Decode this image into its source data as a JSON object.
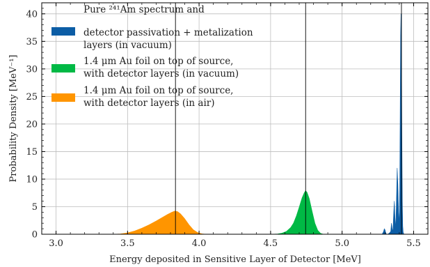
{
  "chart_data": {
    "type": "area",
    "xlabel": "Energy deposited in Sensitive Layer of Detector [MeV]",
    "ylabel": "Probability Density [MeV⁻¹]",
    "xlim": [
      2.9,
      5.6
    ],
    "ylim": [
      0,
      42
    ],
    "xticks": [
      3.0,
      3.5,
      4.0,
      4.5,
      5.0,
      5.5
    ],
    "xtick_labels": [
      "3.0",
      "3.5",
      "4.0",
      "4.5",
      "5.0",
      "5.5"
    ],
    "yticks": [
      0,
      5,
      10,
      15,
      20,
      25,
      30,
      35,
      40
    ],
    "ytick_labels": [
      "0",
      "5",
      "10",
      "15",
      "20",
      "25",
      "30",
      "35",
      "40"
    ],
    "grid": true,
    "legend_position": "top-left",
    "vertical_lines": [
      3.835,
      4.745,
      5.415
    ],
    "series": [
      {
        "name": "Pure 241Am spectrum and detector passivation + metalization layers (in vacuum)",
        "legend_lines": [
          "Pure ²⁴¹Am spectrum and",
          "detector passivation + metalization",
          "layers (in vacuum)"
        ],
        "color": "#0C5DA5",
        "x": [
          5.28,
          5.29,
          5.295,
          5.3,
          5.305,
          5.31,
          5.32,
          5.33,
          5.34,
          5.345,
          5.35,
          5.355,
          5.36,
          5.365,
          5.37,
          5.375,
          5.38,
          5.385,
          5.39,
          5.395,
          5.4,
          5.403,
          5.406,
          5.409,
          5.412,
          5.415,
          5.418,
          5.421,
          5.424,
          5.427,
          5.43,
          5.435
        ],
        "values": [
          0,
          0.5,
          1.0,
          0.8,
          0.3,
          0,
          0,
          0.2,
          0.5,
          2.0,
          1.0,
          0.5,
          3.5,
          6.0,
          3.0,
          1.0,
          6.0,
          12.0,
          9.0,
          4.0,
          2.0,
          8.0,
          22.0,
          36.0,
          40.0,
          34.0,
          18.0,
          6.0,
          1.5,
          0.4,
          0.1,
          0
        ]
      },
      {
        "name": "1.4 μm Au foil on top of source, with detector layers (in vacuum)",
        "legend_lines": [
          "1.4 μm Au foil on top of source,",
          "with detector layers (in vacuum)"
        ],
        "color": "#00B945",
        "x": [
          4.5,
          4.55,
          4.58,
          4.61,
          4.64,
          4.66,
          4.68,
          4.7,
          4.72,
          4.735,
          4.745,
          4.755,
          4.77,
          4.79,
          4.81,
          4.83,
          4.85,
          4.87
        ],
        "values": [
          0,
          0.05,
          0.2,
          0.5,
          1.2,
          2.0,
          3.3,
          4.9,
          6.6,
          7.5,
          7.9,
          7.6,
          6.5,
          4.2,
          2.0,
          0.7,
          0.15,
          0
        ]
      },
      {
        "name": "1.4 μm Au foil on top of source, with detector layers (in air)",
        "legend_lines": [
          "1.4 μm Au foil on top of source,",
          "with detector layers (in air)"
        ],
        "color": "#FF9500",
        "x": [
          3.4,
          3.45,
          3.5,
          3.55,
          3.6,
          3.65,
          3.7,
          3.74,
          3.78,
          3.81,
          3.83,
          3.85,
          3.87,
          3.9,
          3.93,
          3.96,
          3.99,
          4.02,
          4.05
        ],
        "values": [
          0,
          0.05,
          0.25,
          0.6,
          1.1,
          1.7,
          2.4,
          3.0,
          3.6,
          4.0,
          4.2,
          4.1,
          3.7,
          2.8,
          1.7,
          0.8,
          0.3,
          0.08,
          0
        ]
      }
    ]
  }
}
